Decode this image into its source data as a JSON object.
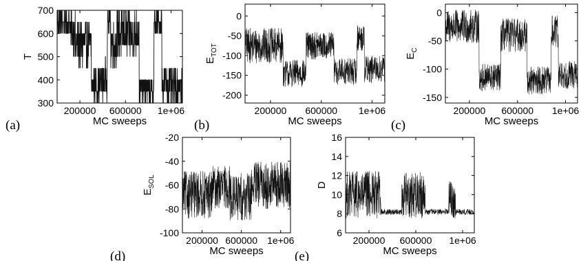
{
  "figure_description_free": true,
  "chart_data": [
    {
      "panel": "(a)",
      "type": "line",
      "ylabel": "T",
      "ylabel_sub": "",
      "xlabel": "MC sweeps",
      "xlim": [
        0,
        1100000
      ],
      "ylim": [
        300,
        700
      ],
      "xticks": [
        200000,
        600000,
        1000000
      ],
      "xtick_labels": [
        "200000",
        "600000",
        "1e+06"
      ],
      "yticks": [
        300,
        400,
        500,
        600,
        700
      ],
      "ytick_labels": [
        "300",
        "400",
        "500",
        "600",
        "700"
      ],
      "style": "temperature-ladder",
      "levels": [
        300,
        350,
        400,
        450,
        500,
        550,
        600,
        650,
        700
      ],
      "segments": [
        {
          "x0": 0,
          "x1": 120000,
          "center": 650,
          "spread": 60
        },
        {
          "x0": 120000,
          "x1": 160000,
          "center": 600,
          "spread": 80
        },
        {
          "x0": 160000,
          "x1": 300000,
          "center": 550,
          "spread": 100
        },
        {
          "x0": 300000,
          "x1": 380000,
          "center": 380,
          "spread": 70
        },
        {
          "x0": 380000,
          "x1": 440000,
          "center": 400,
          "spread": 80
        },
        {
          "x0": 440000,
          "x1": 470000,
          "center": 650,
          "spread": 50
        },
        {
          "x0": 470000,
          "x1": 520000,
          "center": 550,
          "spread": 100
        },
        {
          "x0": 520000,
          "x1": 720000,
          "center": 600,
          "spread": 100
        },
        {
          "x0": 720000,
          "x1": 850000,
          "center": 360,
          "spread": 60
        },
        {
          "x0": 850000,
          "x1": 920000,
          "center": 640,
          "spread": 60
        },
        {
          "x0": 920000,
          "x1": 1100000,
          "center": 380,
          "spread": 80
        }
      ]
    },
    {
      "panel": "(b)",
      "type": "line",
      "ylabel": "E",
      "ylabel_sub": "TOT",
      "xlabel": "MC sweeps",
      "xlim": [
        0,
        1100000
      ],
      "ylim": [
        -220,
        30
      ],
      "xticks": [
        200000,
        600000,
        1000000
      ],
      "xtick_labels": [
        "200000",
        "600000",
        "1e+06"
      ],
      "yticks": [
        -200,
        -150,
        -100,
        -50,
        0
      ],
      "ytick_labels": [
        "-200",
        "-150",
        "-100",
        "-50",
        "0"
      ],
      "style": "noisy",
      "segments": [
        {
          "x0": 0,
          "x1": 300000,
          "center": -75,
          "spread": 45
        },
        {
          "x0": 300000,
          "x1": 480000,
          "center": -145,
          "spread": 35
        },
        {
          "x0": 480000,
          "x1": 700000,
          "center": -75,
          "spread": 35
        },
        {
          "x0": 700000,
          "x1": 880000,
          "center": -140,
          "spread": 35
        },
        {
          "x0": 880000,
          "x1": 940000,
          "center": -55,
          "spread": 35
        },
        {
          "x0": 940000,
          "x1": 1100000,
          "center": -135,
          "spread": 35
        }
      ]
    },
    {
      "panel": "(c)",
      "type": "line",
      "ylabel": "E",
      "ylabel_sub": "C",
      "xlabel": "MC sweeps",
      "xlim": [
        0,
        1100000
      ],
      "ylim": [
        -160,
        15
      ],
      "xticks": [
        200000,
        600000,
        1000000
      ],
      "xtick_labels": [
        "200000",
        "600000",
        "1e+06"
      ],
      "yticks": [
        -150,
        -100,
        -50,
        0
      ],
      "ytick_labels": [
        "-150",
        "-100",
        "-50",
        "0"
      ],
      "style": "noisy",
      "segments": [
        {
          "x0": 0,
          "x1": 280000,
          "center": -25,
          "spread": 30
        },
        {
          "x0": 280000,
          "x1": 460000,
          "center": -115,
          "spread": 25
        },
        {
          "x0": 460000,
          "x1": 680000,
          "center": -40,
          "spread": 30
        },
        {
          "x0": 680000,
          "x1": 880000,
          "center": -120,
          "spread": 25
        },
        {
          "x0": 880000,
          "x1": 940000,
          "center": -35,
          "spread": 30
        },
        {
          "x0": 940000,
          "x1": 1100000,
          "center": -110,
          "spread": 25
        }
      ]
    },
    {
      "panel": "(d)",
      "type": "line",
      "ylabel": "E",
      "ylabel_sub": "SOL",
      "xlabel": "MC sweeps",
      "xlim": [
        0,
        1100000
      ],
      "ylim": [
        -100,
        -20
      ],
      "xticks": [
        200000,
        600000,
        1000000
      ],
      "xtick_labels": [
        "200000",
        "600000",
        "1e+06"
      ],
      "yticks": [
        -100,
        -80,
        -60,
        -40,
        -20
      ],
      "ytick_labels": [
        "-100",
        "-80",
        "-60",
        "-40",
        "-20"
      ],
      "style": "noisy",
      "segments": [
        {
          "x0": 0,
          "x1": 300000,
          "center": -68,
          "spread": 20
        },
        {
          "x0": 300000,
          "x1": 480000,
          "center": -62,
          "spread": 18
        },
        {
          "x0": 480000,
          "x1": 700000,
          "center": -70,
          "spread": 20
        },
        {
          "x0": 700000,
          "x1": 1100000,
          "center": -60,
          "spread": 20
        }
      ]
    },
    {
      "panel": "(e)",
      "type": "line",
      "ylabel": "D",
      "ylabel_sub": "",
      "xlabel": "MC sweeps",
      "xlim": [
        0,
        1100000
      ],
      "ylim": [
        6,
        16
      ],
      "xticks": [
        200000,
        600000,
        1000000
      ],
      "xtick_labels": [
        "200000",
        "600000",
        "1e+06"
      ],
      "yticks": [
        6,
        8,
        10,
        12,
        14,
        16
      ],
      "ytick_labels": [
        "6",
        "8",
        "10",
        "12",
        "14",
        "16"
      ],
      "style": "noisy",
      "segments": [
        {
          "x0": 0,
          "x1": 300000,
          "center": 10.0,
          "spread": 2.5
        },
        {
          "x0": 300000,
          "x1": 480000,
          "center": 8.2,
          "spread": 0.3
        },
        {
          "x0": 480000,
          "x1": 680000,
          "center": 10.0,
          "spread": 2.5
        },
        {
          "x0": 680000,
          "x1": 880000,
          "center": 8.2,
          "spread": 0.3
        },
        {
          "x0": 880000,
          "x1": 940000,
          "center": 9.5,
          "spread": 2.0
        },
        {
          "x0": 940000,
          "x1": 1100000,
          "center": 8.2,
          "spread": 0.3
        }
      ]
    }
  ]
}
